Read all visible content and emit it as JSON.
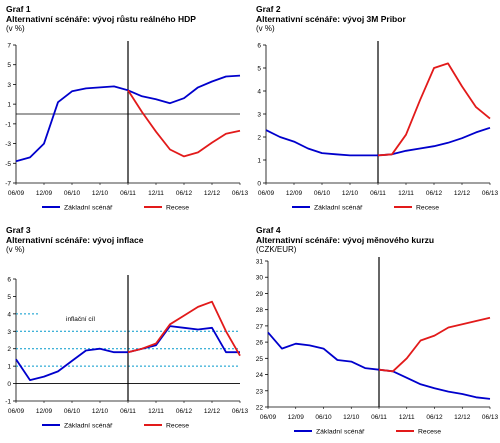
{
  "colors": {
    "base": "#0000cc",
    "recession": "#e21a1a",
    "axis": "#000000",
    "guide": "#0099cc"
  },
  "x_ticks": [
    "06/09",
    "12/09",
    "06/10",
    "12/10",
    "06/11",
    "12/11",
    "06/12",
    "12/12",
    "06/13"
  ],
  "legend": {
    "base": "Základní scénář",
    "recession": "Recese"
  },
  "chart_data": [
    {
      "id": "graf1",
      "type": "line",
      "graf_label": "Graf 1",
      "title": "Alternativní scénáře: vývoj růstu reálného HDP",
      "unit": "(v %)",
      "ylim": [
        -7,
        7
      ],
      "yticks": [
        -7,
        -5,
        -3,
        -1,
        1,
        3,
        5,
        7
      ],
      "x_ticks": [
        "06/09",
        "12/09",
        "06/10",
        "12/10",
        "06/11",
        "12/11",
        "06/12",
        "12/12",
        "06/13"
      ],
      "zero_line": 0,
      "vline_at": 8,
      "series": [
        {
          "name": "Základní scénář",
          "color": "#0000cc",
          "x": [
            0,
            1,
            2,
            3,
            4,
            5,
            6,
            7,
            8,
            9,
            10,
            11,
            12,
            13,
            14,
            15,
            16
          ],
          "y": [
            -4.8,
            -4.4,
            -3.0,
            1.2,
            2.3,
            2.6,
            2.7,
            2.8,
            2.4,
            1.8,
            1.5,
            1.1,
            1.6,
            2.7,
            3.3,
            3.8,
            3.9
          ]
        },
        {
          "name": "Recese",
          "color": "#e21a1a",
          "x": [
            8,
            9,
            10,
            11,
            12,
            13,
            14,
            15,
            16
          ],
          "y": [
            2.4,
            0.2,
            -1.8,
            -3.6,
            -4.3,
            -3.9,
            -2.9,
            -2.0,
            -1.7
          ]
        }
      ]
    },
    {
      "id": "graf2",
      "type": "line",
      "graf_label": "Graf 2",
      "title": "Alternativní scénáře: vývoj 3M Pribor",
      "unit": "(v %)",
      "ylim": [
        0,
        6
      ],
      "yticks": [
        0,
        1,
        2,
        3,
        4,
        5,
        6
      ],
      "x_ticks": [
        "06/09",
        "12/09",
        "06/10",
        "12/10",
        "06/11",
        "12/11",
        "06/12",
        "12/12",
        "06/13"
      ],
      "vline_at": 8,
      "series": [
        {
          "name": "Základní scénář",
          "color": "#0000cc",
          "x": [
            0,
            1,
            2,
            3,
            4,
            5,
            6,
            7,
            8,
            9,
            10,
            11,
            12,
            13,
            14,
            15,
            16
          ],
          "y": [
            2.3,
            2.0,
            1.8,
            1.5,
            1.3,
            1.25,
            1.2,
            1.2,
            1.2,
            1.25,
            1.4,
            1.5,
            1.6,
            1.75,
            1.95,
            2.2,
            2.4
          ]
        },
        {
          "name": "Recese",
          "color": "#e21a1a",
          "x": [
            8,
            9,
            10,
            11,
            12,
            13,
            14,
            15,
            16
          ],
          "y": [
            1.2,
            1.25,
            2.1,
            3.6,
            5.0,
            5.2,
            4.2,
            3.3,
            2.8
          ]
        }
      ]
    },
    {
      "id": "graf3",
      "type": "line",
      "graf_label": "Graf 3",
      "title": "Alternativní scénáře: vývoj inflace",
      "unit": "(v %)",
      "ylim": [
        -1,
        6
      ],
      "yticks": [
        -1,
        0,
        1,
        2,
        3,
        4,
        5,
        6
      ],
      "x_ticks": [
        "06/09",
        "12/09",
        "06/10",
        "12/10",
        "06/11",
        "12/11",
        "06/12",
        "12/12",
        "06/13"
      ],
      "zero_line": 0,
      "vline_at": 8,
      "annotation": "inflační cíl",
      "target_lines": [
        1,
        2,
        3
      ],
      "short_marker": 4,
      "series": [
        {
          "name": "Základní scénář",
          "color": "#0000cc",
          "x": [
            0,
            1,
            2,
            3,
            4,
            5,
            6,
            7,
            8,
            9,
            10,
            11,
            12,
            13,
            14,
            15,
            16
          ],
          "y": [
            1.4,
            0.2,
            0.4,
            0.7,
            1.3,
            1.9,
            2.0,
            1.8,
            1.8,
            2.0,
            2.2,
            3.3,
            3.2,
            3.1,
            3.2,
            1.8,
            1.8
          ]
        },
        {
          "name": "Recese",
          "color": "#e21a1a",
          "x": [
            8,
            9,
            10,
            11,
            12,
            13,
            14,
            15,
            16
          ],
          "y": [
            1.8,
            2.0,
            2.3,
            3.4,
            3.9,
            4.4,
            4.7,
            3.0,
            1.6
          ]
        }
      ]
    },
    {
      "id": "graf4",
      "type": "line",
      "graf_label": "Graf 4",
      "title": "Alternativní scénáře: vývoj měnového kurzu",
      "unit": "(CZK/EUR)",
      "ylim": [
        22,
        31
      ],
      "yticks": [
        22,
        23,
        24,
        25,
        26,
        27,
        28,
        29,
        30,
        31
      ],
      "x_ticks": [
        "06/09",
        "12/09",
        "06/10",
        "12/10",
        "06/11",
        "12/11",
        "06/12",
        "12/12",
        "06/13"
      ],
      "vline_at": 8,
      "series": [
        {
          "name": "Základní scénář",
          "color": "#0000cc",
          "x": [
            0,
            1,
            2,
            3,
            4,
            5,
            6,
            7,
            8,
            9,
            10,
            11,
            12,
            13,
            14,
            15,
            16
          ],
          "y": [
            26.6,
            25.6,
            25.9,
            25.8,
            25.6,
            24.9,
            24.8,
            24.4,
            24.3,
            24.2,
            23.8,
            23.4,
            23.15,
            22.95,
            22.8,
            22.6,
            22.5
          ]
        },
        {
          "name": "Recese",
          "color": "#e21a1a",
          "x": [
            8,
            9,
            10,
            11,
            12,
            13,
            14,
            15,
            16
          ],
          "y": [
            24.3,
            24.2,
            25.0,
            26.1,
            26.4,
            26.9,
            27.1,
            27.3,
            27.5
          ]
        }
      ]
    }
  ]
}
